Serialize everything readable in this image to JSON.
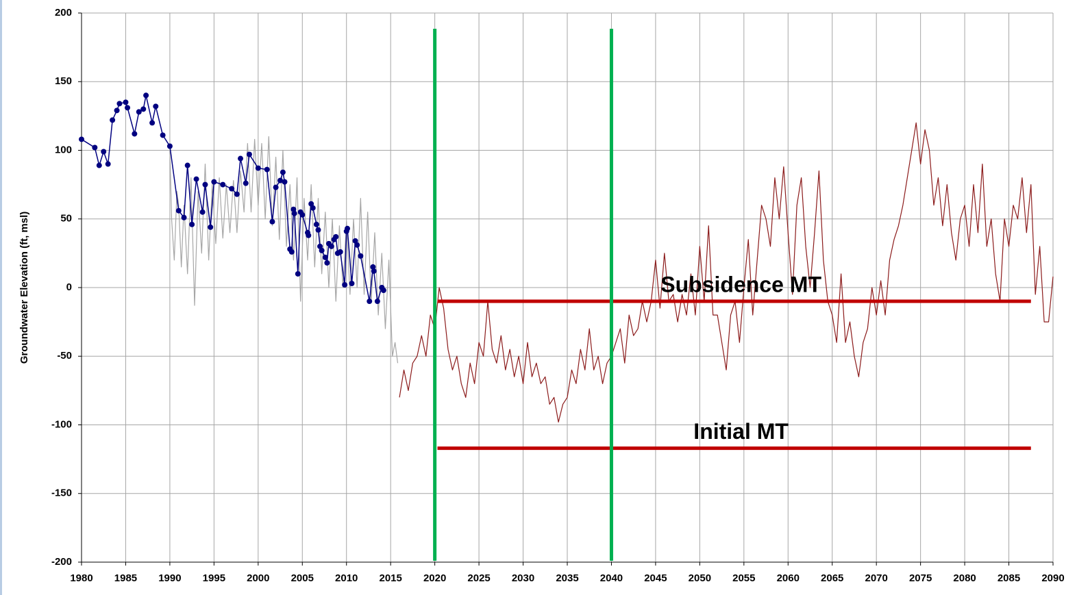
{
  "chart_data": {
    "type": "line",
    "y_label": "Groundwater Elevation (ft, msl)",
    "xlim": [
      1980,
      2090
    ],
    "xticks": [
      1980,
      1985,
      1990,
      1995,
      2000,
      2005,
      2010,
      2015,
      2020,
      2025,
      2030,
      2035,
      2040,
      2045,
      2050,
      2055,
      2060,
      2065,
      2070,
      2075,
      2080,
      2085,
      2090
    ],
    "ylim": [
      -200,
      200
    ],
    "yticks": [
      -200,
      -150,
      -100,
      -50,
      0,
      50,
      100,
      150,
      200
    ],
    "grid": true,
    "series": [
      {
        "color": "#a6a6a6",
        "width": 1.2,
        "marker": false,
        "x": [
          1990,
          1990.2,
          1990.5,
          1990.8,
          1991,
          1991.3,
          1991.6,
          1992,
          1992.4,
          1992.8,
          1993.2,
          1993.6,
          1994,
          1994.4,
          1994.8,
          1995.2,
          1995.6,
          1996,
          1996.4,
          1996.8,
          1997.2,
          1997.6,
          1998,
          1998.4,
          1998.8,
          1999.2,
          1999.6,
          2000,
          2000.4,
          2000.8,
          2001.2,
          2001.6,
          2002,
          2002.4,
          2002.8,
          2003.2,
          2003.6,
          2004,
          2004.4,
          2004.8,
          2005.2,
          2005.6,
          2006,
          2006.4,
          2006.8,
          2007.2,
          2007.6,
          2008,
          2008.4,
          2008.8,
          2009.2,
          2009.6,
          2010,
          2010.4,
          2010.8,
          2011.2,
          2011.6,
          2012,
          2012.4,
          2012.8,
          2013.2,
          2013.6,
          2014,
          2014.4,
          2014.8,
          2015.2,
          2015.5,
          2015.8
        ],
        "values": [
          100,
          50,
          20,
          70,
          60,
          15,
          60,
          10,
          80,
          -13,
          70,
          25,
          90,
          20,
          75,
          32,
          80,
          36,
          75,
          40,
          78,
          40,
          85,
          55,
          105,
          55,
          108,
          60,
          105,
          50,
          110,
          45,
          95,
          35,
          100,
          30,
          75,
          20,
          80,
          -10,
          65,
          20,
          75,
          15,
          65,
          10,
          55,
          0,
          50,
          -10,
          45,
          0,
          48,
          -5,
          50,
          0,
          65,
          -5,
          55,
          -10,
          40,
          -20,
          25,
          -30,
          20,
          -50,
          -40,
          -55
        ]
      },
      {
        "color": "#000080",
        "width": 1.5,
        "marker": true,
        "x": [
          1980,
          1981.5,
          1982,
          1982.5,
          1983,
          1983.5,
          1984,
          1984.3,
          1985,
          1985.2,
          1986,
          1986.5,
          1987,
          1987.3,
          1988,
          1988.4,
          1989.2,
          1990,
          1991,
          1991.6,
          1992,
          1992.5,
          1993,
          1993.7,
          1994,
          1994.6,
          1995,
          1996,
          1997,
          1997.6,
          1998,
          1998.6,
          1999,
          2000,
          2001,
          2001.6,
          2002,
          2002.5,
          2002.8,
          2003,
          2003.6,
          2003.8,
          2004,
          2004.1,
          2004.5,
          2004.8,
          2005,
          2005.6,
          2005.7,
          2006,
          2006.2,
          2006.6,
          2006.8,
          2007,
          2007.2,
          2007.6,
          2007.8,
          2008,
          2008.3,
          2008.6,
          2008.8,
          2009,
          2009.3,
          2009.8,
          2010,
          2010.1,
          2010.6,
          2011,
          2011.2,
          2011.6,
          2012.6,
          2013,
          2013.1,
          2013.5,
          2014,
          2014.2
        ],
        "values": [
          108,
          102,
          89,
          99,
          90,
          122,
          129,
          134,
          135,
          131,
          112,
          128,
          130,
          140,
          120,
          132,
          111,
          103,
          56,
          51,
          89,
          46,
          79,
          55,
          75,
          44,
          77,
          75,
          72,
          68,
          94,
          76,
          97,
          87,
          86,
          48,
          73,
          78,
          84,
          77,
          28,
          26,
          57,
          54,
          10,
          55,
          53,
          40,
          38,
          61,
          58,
          46,
          42,
          30,
          27,
          22,
          18,
          32,
          30,
          35,
          37,
          25,
          26,
          2,
          41,
          43,
          3,
          34,
          31,
          23,
          -10,
          15,
          12,
          -10,
          0,
          -2
        ]
      },
      {
        "color": "#8b1a1a",
        "width": 1.2,
        "marker": false,
        "x": [
          2016,
          2016.5,
          2017,
          2017.5,
          2018,
          2018.5,
          2019,
          2019.5,
          2020,
          2020.5,
          2021,
          2021.5,
          2022,
          2022.5,
          2023,
          2023.5,
          2024,
          2024.5,
          2025,
          2025.5,
          2026,
          2026.5,
          2027,
          2027.5,
          2028,
          2028.5,
          2029,
          2029.5,
          2030,
          2030.5,
          2031,
          2031.5,
          2032,
          2032.5,
          2033,
          2033.5,
          2034,
          2034.5,
          2035,
          2035.5,
          2036,
          2036.5,
          2037,
          2037.5,
          2038,
          2038.5,
          2039,
          2039.5,
          2040,
          2040.5,
          2041,
          2041.5,
          2042,
          2042.5,
          2043,
          2043.5,
          2044,
          2044.5,
          2045,
          2045.5,
          2046,
          2046.5,
          2047,
          2047.5,
          2048,
          2048.5,
          2049,
          2049.5,
          2050,
          2050.5,
          2051,
          2051.5,
          2052,
          2052.5,
          2053,
          2053.5,
          2054,
          2054.5,
          2055,
          2055.5,
          2056,
          2056.5,
          2057,
          2057.5,
          2058,
          2058.5,
          2059,
          2059.5,
          2060,
          2060.5,
          2061,
          2061.5,
          2062,
          2062.5,
          2063,
          2063.5,
          2064,
          2064.5,
          2065,
          2065.5,
          2066,
          2066.5,
          2067,
          2067.5,
          2068,
          2068.5,
          2069,
          2069.5,
          2070,
          2070.5,
          2071,
          2071.5,
          2072,
          2072.5,
          2073,
          2073.5,
          2074,
          2074.5,
          2075,
          2075.5,
          2076,
          2076.5,
          2077,
          2077.5,
          2078,
          2078.5,
          2079,
          2079.5,
          2080,
          2080.5,
          2081,
          2081.5,
          2082,
          2082.5,
          2083,
          2083.5,
          2084,
          2084.5,
          2085,
          2085.5,
          2086,
          2086.5,
          2087,
          2087.5,
          2088,
          2088.5,
          2089,
          2089.5,
          2090
        ],
        "values": [
          -80,
          -60,
          -75,
          -55,
          -50,
          -35,
          -50,
          -20,
          -30,
          0,
          -15,
          -45,
          -60,
          -50,
          -70,
          -80,
          -55,
          -70,
          -40,
          -50,
          -10,
          -45,
          -55,
          -35,
          -60,
          -45,
          -65,
          -50,
          -70,
          -40,
          -65,
          -55,
          -70,
          -65,
          -85,
          -80,
          -98,
          -85,
          -80,
          -60,
          -70,
          -45,
          -60,
          -30,
          -60,
          -50,
          -70,
          -55,
          -50,
          -40,
          -30,
          -55,
          -20,
          -35,
          -30,
          -10,
          -25,
          -10,
          20,
          -15,
          25,
          -10,
          -5,
          -25,
          -5,
          -20,
          10,
          -20,
          30,
          -10,
          45,
          -20,
          -20,
          -40,
          -60,
          -20,
          -10,
          -40,
          0,
          35,
          -20,
          20,
          60,
          50,
          30,
          80,
          50,
          88,
          40,
          -5,
          60,
          80,
          30,
          0,
          40,
          85,
          20,
          -10,
          -20,
          -40,
          10,
          -40,
          -25,
          -50,
          -65,
          -40,
          -30,
          0,
          -20,
          5,
          -20,
          20,
          35,
          45,
          60,
          80,
          100,
          120,
          90,
          115,
          100,
          60,
          80,
          45,
          75,
          40,
          20,
          50,
          60,
          30,
          75,
          40,
          90,
          30,
          50,
          10,
          -10,
          50,
          30,
          60,
          50,
          80,
          40,
          75,
          -5,
          30,
          -25,
          -25,
          8
        ]
      }
    ],
    "annotations": [
      {
        "text": "Subsidence MT",
        "value": -10,
        "x": [
          2020.3,
          2087.5
        ],
        "color": "#c00000"
      },
      {
        "text": "Initial MT",
        "value": -117,
        "x": [
          2020.3,
          2087.5
        ],
        "color": "#c00000"
      }
    ],
    "vlines": [
      {
        "value": 2020,
        "color": "#00b050"
      },
      {
        "value": 2040,
        "color": "#00b050"
      }
    ]
  }
}
